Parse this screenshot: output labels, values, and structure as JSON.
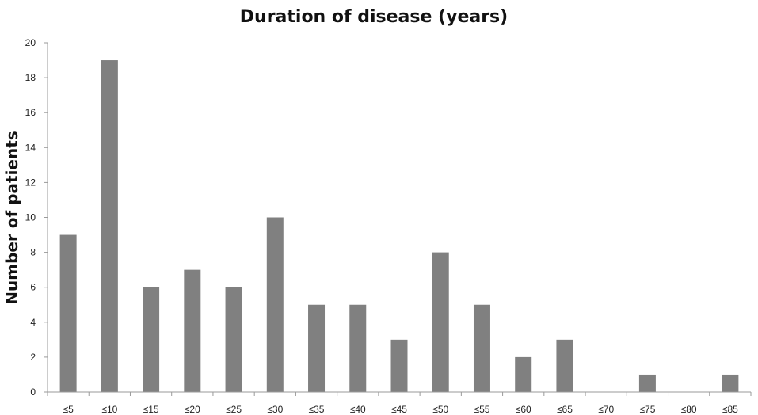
{
  "chart_data": {
    "type": "bar",
    "title": "Duration of disease (years)",
    "xlabel": "",
    "ylabel": "Number of patients",
    "categories": [
      "≤5",
      "≤10",
      "≤15",
      "≤20",
      "≤25",
      "≤30",
      "≤35",
      "≤40",
      "≤45",
      "≤50",
      "≤55",
      "≤60",
      "≤65",
      "≤70",
      "≤75",
      "≤80",
      "≤85"
    ],
    "values": [
      9,
      19,
      6,
      7,
      6,
      10,
      5,
      5,
      3,
      8,
      5,
      2,
      3,
      0,
      1,
      0,
      1
    ],
    "ylim": [
      0,
      20
    ],
    "yticks": [
      "0",
      "2",
      "4",
      "6",
      "8",
      "10",
      "12",
      "14",
      "16",
      "18",
      "20"
    ],
    "grid": false,
    "legend": "none",
    "bar_color": "#808080"
  }
}
